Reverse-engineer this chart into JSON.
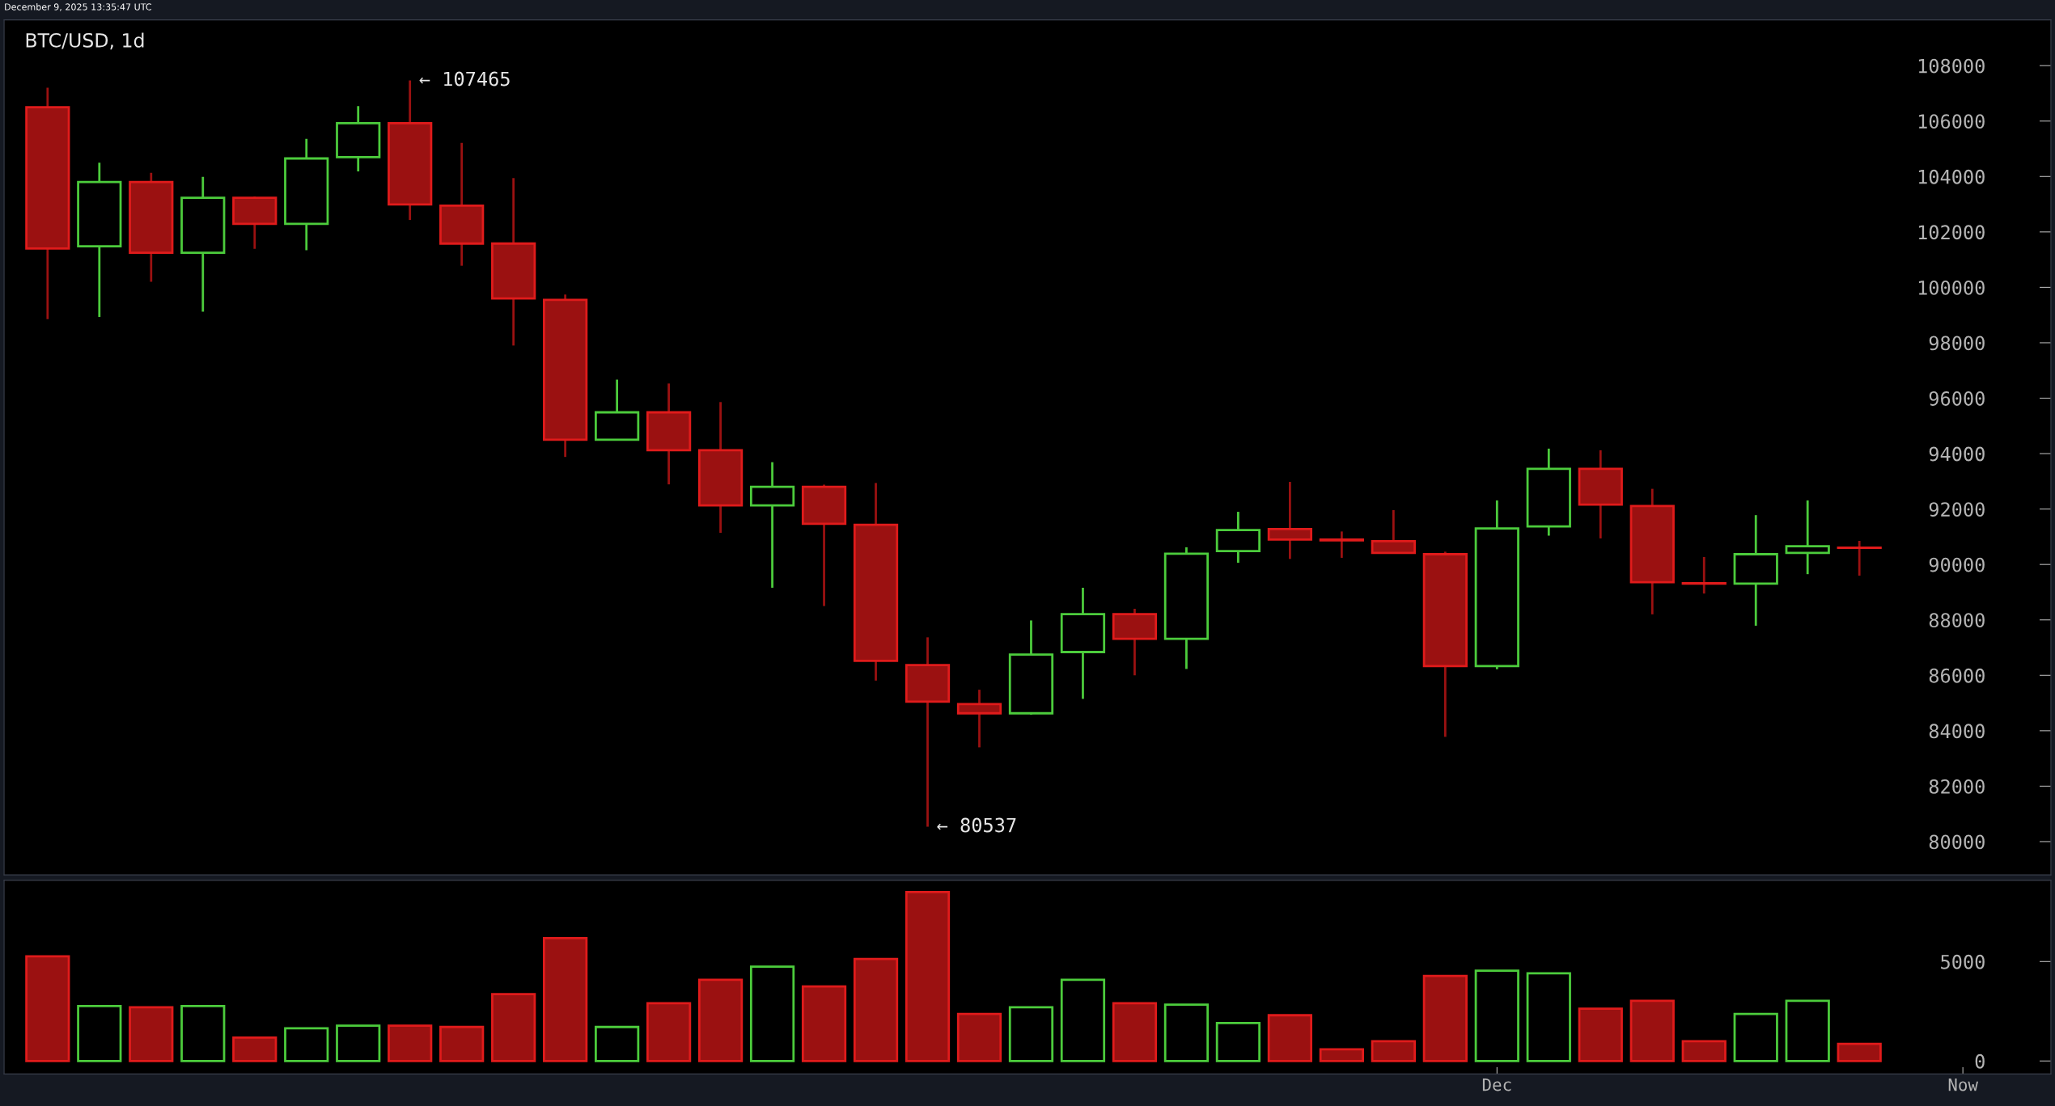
{
  "chart_data": [
    {
      "type": "candlestick",
      "title": "BTC/USD, 1d",
      "annotations": [
        "December 9, 2025 13:35:47 UTC",
        "← 107465",
        "← 80537"
      ],
      "ohlc": [
        [
          106500,
          107200,
          98850,
          101400
        ],
        [
          101480,
          104500,
          98930,
          103800
        ],
        [
          103800,
          104130,
          100200,
          101250
        ],
        [
          101250,
          103990,
          99120,
          103230
        ],
        [
          103230,
          103280,
          101390,
          102290
        ],
        [
          102290,
          105360,
          101340,
          104650
        ],
        [
          104700,
          106540,
          104180,
          105920
        ],
        [
          105920,
          107465,
          102430,
          102990
        ],
        [
          102950,
          105210,
          100780,
          101580
        ],
        [
          101580,
          103940,
          97900,
          99600
        ],
        [
          99550,
          99740,
          93880,
          94500
        ],
        [
          94500,
          96670,
          94500,
          95490
        ],
        [
          95490,
          96530,
          92890,
          94120
        ],
        [
          94120,
          95860,
          91140,
          92130
        ],
        [
          92130,
          93690,
          89160,
          92800
        ],
        [
          92800,
          92880,
          88500,
          91470
        ],
        [
          91430,
          92940,
          85810,
          86520
        ],
        [
          86370,
          87370,
          80537,
          85050
        ],
        [
          84960,
          85480,
          83400,
          84630
        ],
        [
          84630,
          87980,
          84580,
          86750
        ],
        [
          86840,
          89160,
          85150,
          88210
        ],
        [
          88210,
          88400,
          86000,
          87320
        ],
        [
          87320,
          90620,
          86230,
          90390
        ],
        [
          90480,
          91900,
          90060,
          91240
        ],
        [
          91280,
          92980,
          90200,
          90900
        ],
        [
          90900,
          91190,
          90240,
          90870
        ],
        [
          90840,
          91960,
          90420,
          90420
        ],
        [
          90370,
          90460,
          83780,
          86330
        ],
        [
          86330,
          92310,
          86220,
          91300
        ],
        [
          91370,
          94180,
          91040,
          93450
        ],
        [
          93450,
          94120,
          90940,
          92160
        ],
        [
          92110,
          92730,
          88200,
          89360
        ],
        [
          89320,
          90270,
          88950,
          89310
        ],
        [
          89310,
          91780,
          87790,
          90370
        ],
        [
          90420,
          92310,
          89650,
          90660
        ],
        [
          90610,
          90850,
          89600,
          90600
        ],
        null,
        null
      ],
      "colors": [
        "#9b1111",
        "#4ccc3c",
        "#9b1111",
        "#4ccc3c",
        "#9b1111",
        "#4ccc3c",
        "#4ccc3c",
        "#9b1111",
        "#9b1111",
        "#9b1111",
        "#9b1111",
        "#4ccc3c",
        "#9b1111",
        "#9b1111",
        "#4ccc3c",
        "#9b1111",
        "#9b1111",
        "#9b1111",
        "#9b1111",
        "#4ccc3c",
        "#4ccc3c",
        "#9b1111",
        "#4ccc3c",
        "#4ccc3c",
        "#9b1111",
        "#9b1111",
        "#9b1111",
        "#9b1111",
        "#4ccc3c",
        "#4ccc3c",
        "#9b1111",
        "#9b1111",
        "#9b1111",
        "#4ccc3c",
        "#4ccc3c",
        "#9b1111",
        null,
        null
      ],
      "tick_labels": "y",
      "ylim": [
        78800,
        109650
      ],
      "yticks": [
        80000,
        82000,
        84000,
        86000,
        88000,
        90000,
        92000,
        94000,
        96000,
        98000,
        100000,
        102000,
        104000,
        106000,
        108000
      ]
    },
    {
      "type": "bar",
      "categories": [
        null,
        null,
        null,
        null,
        null,
        null,
        null,
        null,
        null,
        null,
        null,
        null,
        null,
        null,
        null,
        null,
        null,
        null,
        null,
        null,
        null,
        null,
        null,
        null,
        null,
        null,
        null,
        null,
        "Dec",
        null,
        null,
        null,
        null,
        null,
        null,
        null,
        null,
        "Now"
      ],
      "values": [
        5260,
        2760,
        2700,
        2760,
        1180,
        1640,
        1780,
        1780,
        1710,
        3360,
        6180,
        1710,
        2900,
        4080,
        4740,
        3750,
        5130,
        8490,
        2370,
        2700,
        4080,
        2900,
        2830,
        1910,
        2300,
        590,
        990,
        4280,
        4540,
        4410,
        2630,
        3030,
        990,
        2370,
        3030,
        860,
        null,
        null
      ],
      "colors": [
        "#9b1111",
        "#4ccc3c",
        "#9b1111",
        "#4ccc3c",
        "#9b1111",
        "#4ccc3c",
        "#4ccc3c",
        "#9b1111",
        "#9b1111",
        "#9b1111",
        "#9b1111",
        "#4ccc3c",
        "#9b1111",
        "#9b1111",
        "#4ccc3c",
        "#9b1111",
        "#9b1111",
        "#9b1111",
        "#9b1111",
        "#4ccc3c",
        "#4ccc3c",
        "#9b1111",
        "#4ccc3c",
        "#4ccc3c",
        "#9b1111",
        "#9b1111",
        "#9b1111",
        "#9b1111",
        "#4ccc3c",
        "#4ccc3c",
        "#9b1111",
        "#9b1111",
        "#9b1111",
        "#4ccc3c",
        "#4ccc3c",
        "#9b1111",
        null,
        null
      ],
      "ylim": [
        -650,
        9080
      ],
      "yticks": [
        0,
        5000
      ]
    }
  ]
}
